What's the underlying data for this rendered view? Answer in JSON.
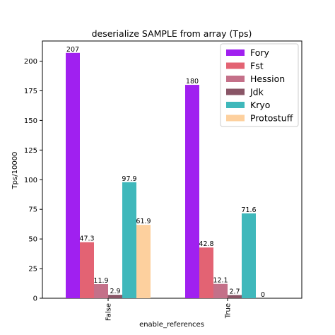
{
  "chart_data": {
    "type": "bar",
    "title": "deserialize SAMPLE from array (Tps)",
    "xlabel": "enable_references",
    "ylabel": "Tps/10000",
    "categories": [
      "False",
      "True"
    ],
    "ylim": [
      0,
      217
    ],
    "yticks": [
      0,
      25,
      50,
      75,
      100,
      125,
      150,
      175,
      200
    ],
    "grid": false,
    "legend_position": "top-right",
    "series": [
      {
        "name": "Fory",
        "color": "#a020f0",
        "values": [
          207,
          180
        ],
        "labels": [
          "207",
          "180"
        ]
      },
      {
        "name": "Fst",
        "color": "#e36373",
        "values": [
          47.3,
          42.8
        ],
        "labels": [
          "47.3",
          "42.8"
        ]
      },
      {
        "name": "Hession",
        "color": "#c47089",
        "values": [
          11.9,
          12.1
        ],
        "labels": [
          "11.9",
          "12.1"
        ]
      },
      {
        "name": "Jdk",
        "color": "#895566",
        "values": [
          2.9,
          2.7
        ],
        "labels": [
          "2.9",
          "2.7"
        ]
      },
      {
        "name": "Kryo",
        "color": "#3fb8bb",
        "values": [
          97.9,
          71.6
        ],
        "labels": [
          "97.9",
          "71.6"
        ]
      },
      {
        "name": "Protostuff",
        "color": "#fdd09e",
        "values": [
          61.9,
          0
        ],
        "labels": [
          "61.9",
          "0"
        ]
      }
    ]
  }
}
